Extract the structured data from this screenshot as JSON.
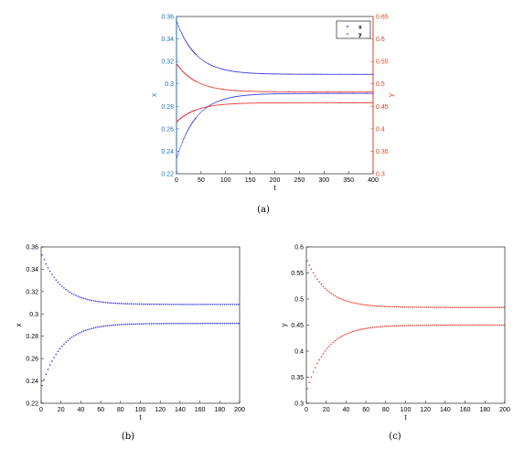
{
  "colors": {
    "x": "#1f1fe0",
    "y": "#e0241c",
    "x_axis": "#1f6fbf",
    "y_axis": "#d9411e",
    "frame": "#000000"
  },
  "chart_data": [
    {
      "id": "a",
      "type": "scatter",
      "caption": "(a)",
      "xlabel": "t",
      "ylabel_left": "x",
      "ylabel_right": "y",
      "xlim": [
        0,
        400
      ],
      "ylim_left": [
        0.22,
        0.36
      ],
      "ylim_right": [
        0.3,
        0.65
      ],
      "xticks": [
        0,
        50,
        100,
        150,
        200,
        250,
        300,
        350,
        400
      ],
      "xtick_labels": [
        "0",
        "50",
        "100",
        "150",
        "200",
        "250",
        "300",
        "350",
        "400"
      ],
      "yticks_left": [
        0.22,
        0.24,
        0.26,
        0.28,
        0.3,
        0.32,
        0.34,
        0.36
      ],
      "ytick_labels_left": [
        "0.22",
        "0.24",
        "0.26",
        "0.28",
        "0.3",
        "0.32",
        "0.34",
        "0.36"
      ],
      "yticks_right": [
        0.3,
        0.35,
        0.4,
        0.45,
        0.5,
        0.55,
        0.6,
        0.65
      ],
      "ytick_labels_right": [
        "0.3",
        "0.35",
        "0.4",
        "0.45",
        "0.5",
        "0.55",
        "0.6",
        "0.65"
      ],
      "legend": {
        "position": "top-right",
        "entries": [
          "x",
          "y"
        ]
      },
      "series": [
        {
          "name": "x",
          "axis": "left",
          "color": "#1f1fe0",
          "upper": {
            "start": 0.356,
            "end": 0.3085,
            "tau": 40
          },
          "lower": {
            "start": 0.233,
            "end": 0.2915,
            "tau": 40
          }
        },
        {
          "name": "y",
          "axis": "right",
          "color": "#e0241c",
          "upper": {
            "start": 0.545,
            "end": 0.482,
            "tau": 40
          },
          "lower": {
            "start": 0.415,
            "end": 0.458,
            "tau": 40
          }
        }
      ]
    },
    {
      "id": "b",
      "type": "scatter",
      "caption": "(b)",
      "xlabel": "t",
      "ylabel": "x",
      "xlim": [
        0,
        200
      ],
      "ylim": [
        0.22,
        0.36
      ],
      "xticks": [
        0,
        20,
        40,
        60,
        80,
        100,
        120,
        140,
        160,
        180,
        200
      ],
      "xtick_labels": [
        "0",
        "20",
        "40",
        "60",
        "80",
        "100",
        "120",
        "140",
        "160",
        "180",
        "200"
      ],
      "yticks": [
        0.22,
        0.24,
        0.26,
        0.28,
        0.3,
        0.32,
        0.34,
        0.36
      ],
      "ytick_labels": [
        "0.22",
        "0.24",
        "0.26",
        "0.28",
        "0.3",
        "0.32",
        "0.34",
        "0.36"
      ],
      "series": [
        {
          "color": "#1f1fe0",
          "upper": {
            "start": 0.355,
            "end": 0.3085,
            "tau": 20
          },
          "lower": {
            "start": 0.233,
            "end": 0.2915,
            "tau": 20
          }
        }
      ]
    },
    {
      "id": "c",
      "type": "scatter",
      "caption": "(c)",
      "xlabel": "t",
      "ylabel": "y",
      "xlim": [
        0,
        200
      ],
      "ylim": [
        0.3,
        0.6
      ],
      "xticks": [
        0,
        20,
        40,
        60,
        80,
        100,
        120,
        140,
        160,
        180,
        200
      ],
      "xtick_labels": [
        "0",
        "20",
        "40",
        "60",
        "80",
        "100",
        "120",
        "140",
        "160",
        "180",
        "200"
      ],
      "yticks": [
        0.3,
        0.35,
        0.4,
        0.45,
        0.5,
        0.55,
        0.6
      ],
      "ytick_labels": [
        "0.3",
        "0.35",
        "0.4",
        "0.45",
        "0.5",
        "0.55",
        "0.6"
      ],
      "series": [
        {
          "color": "#e0241c",
          "upper": {
            "start": 0.578,
            "end": 0.484,
            "tau": 20
          },
          "lower": {
            "start": 0.322,
            "end": 0.45,
            "tau": 20
          }
        }
      ]
    }
  ]
}
